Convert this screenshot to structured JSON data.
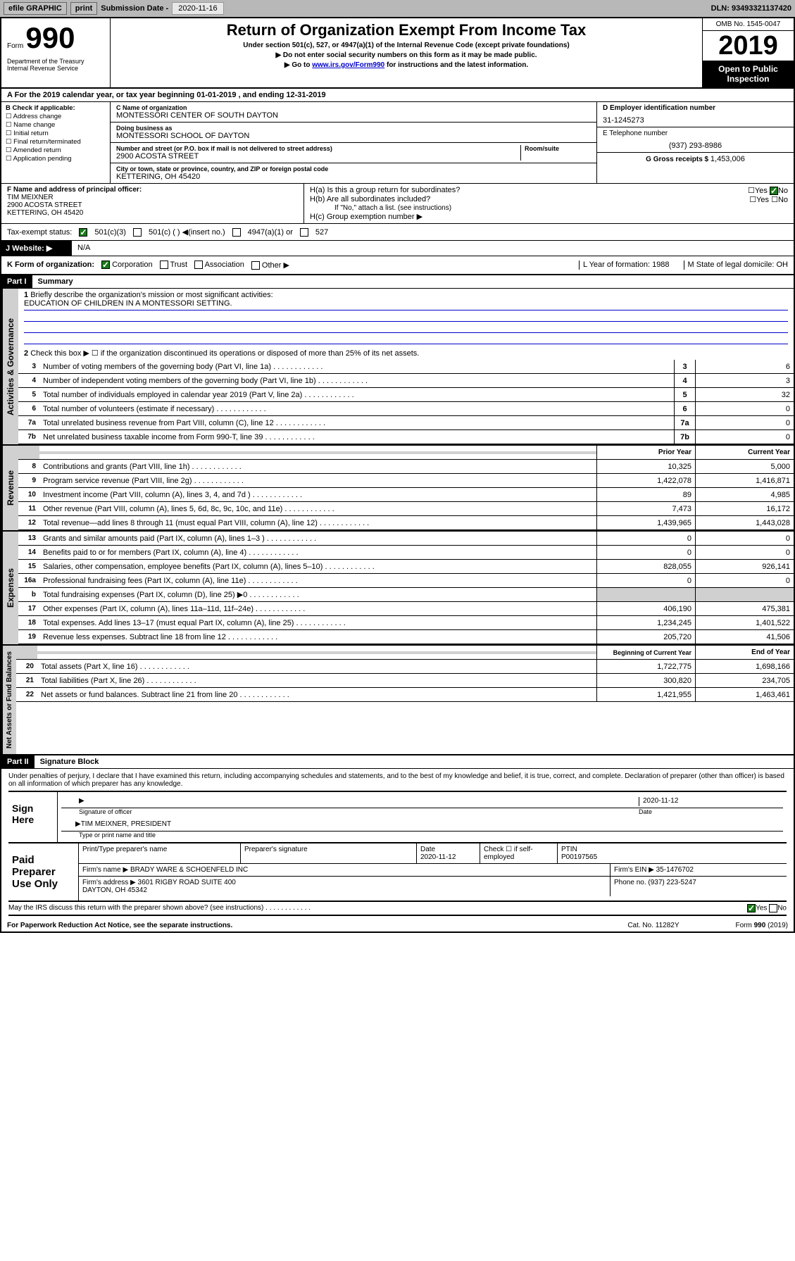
{
  "topbar": {
    "efile": "efile GRAPHIC",
    "print": "print",
    "sub_label": "Submission Date - ",
    "sub_date": "2020-11-16",
    "dln": "DLN: 93493321137420"
  },
  "header": {
    "form": "Form",
    "num": "990",
    "dept": "Department of the Treasury\nInternal Revenue Service",
    "title": "Return of Organization Exempt From Income Tax",
    "subtitle": "Under section 501(c), 527, or 4947(a)(1) of the Internal Revenue Code (except private foundations)",
    "note1": "▶ Do not enter social security numbers on this form as it may be made public.",
    "note2_a": "▶ Go to ",
    "note2_link": "www.irs.gov/Form990",
    "note2_b": " for instructions and the latest information.",
    "omb": "OMB No. 1545-0047",
    "year": "2019",
    "badge": "Open to Public\nInspection"
  },
  "period": "For the 2019 calendar year, or tax year beginning 01-01-2019    , and ending 12-31-2019",
  "b": {
    "label": "B Check if applicable:",
    "opts": [
      "Address change",
      "Name change",
      "Initial return",
      "Final return/terminated",
      "Amended return",
      "Application pending"
    ]
  },
  "c": {
    "name_label": "C Name of organization",
    "name": "MONTESSORI CENTER OF SOUTH DAYTON",
    "dba_label": "Doing business as",
    "dba": "MONTESSORI SCHOOL OF DAYTON",
    "addr_label": "Number and street (or P.O. box if mail is not delivered to street address)",
    "room_label": "Room/suite",
    "addr": "2900 ACOSTA STREET",
    "city_label": "City or town, state or province, country, and ZIP or foreign postal code",
    "city": "KETTERING, OH  45420"
  },
  "d": {
    "label": "D Employer identification number",
    "val": "31-1245273"
  },
  "e": {
    "label": "E Telephone number",
    "val": "(937) 293-8986"
  },
  "g": {
    "label": "G Gross receipts $ ",
    "val": "1,453,006"
  },
  "f": {
    "label": "F  Name and address of principal officer:",
    "name": "TIM MEIXNER",
    "addr": "2900 ACOSTA STREET\nKETTERING, OH  45420"
  },
  "h": {
    "a": "H(a)  Is this a group return for subordinates?",
    "b": "H(b)  Are all subordinates included?",
    "b_note": "If \"No,\" attach a list. (see instructions)",
    "c": "H(c)  Group exemption number ▶",
    "yes": "Yes",
    "no": "No"
  },
  "tax_status": {
    "label": "Tax-exempt status:",
    "opts": [
      "501(c)(3)",
      "501(c) (  ) ◀(insert no.)",
      "4947(a)(1) or",
      "527"
    ]
  },
  "j": {
    "label": "J    Website: ▶",
    "val": "N/A"
  },
  "k": {
    "label": "K Form of organization:",
    "opts": [
      "Corporation",
      "Trust",
      "Association",
      "Other ▶"
    ],
    "l": "L Year of formation: 1988",
    "m": "M State of legal domicile: OH"
  },
  "part1": {
    "hdr": "Part I",
    "title": "Summary",
    "vert1": "Activities & Governance",
    "vert2": "Revenue",
    "vert3": "Expenses",
    "vert4": "Net Assets or Fund Balances",
    "l1": "Briefly describe the organization's mission or most significant activities:",
    "mission": "EDUCATION OF CHILDREN IN A MONTESSORI SETTING.",
    "l2": "Check this box ▶ ☐  if the organization discontinued its operations or disposed of more than 25% of its net assets.",
    "lines_gov": [
      {
        "n": "3",
        "t": "Number of voting members of the governing body (Part VI, line 1a)",
        "box": "3",
        "v": "6"
      },
      {
        "n": "4",
        "t": "Number of independent voting members of the governing body (Part VI, line 1b)",
        "box": "4",
        "v": "3"
      },
      {
        "n": "5",
        "t": "Total number of individuals employed in calendar year 2019 (Part V, line 2a)",
        "box": "5",
        "v": "32"
      },
      {
        "n": "6",
        "t": "Total number of volunteers (estimate if necessary)",
        "box": "6",
        "v": "0"
      },
      {
        "n": "7a",
        "t": "Total unrelated business revenue from Part VIII, column (C), line 12",
        "box": "7a",
        "v": "0"
      },
      {
        "n": "7b",
        "t": "Net unrelated business taxable income from Form 990-T, line 39",
        "box": "7b",
        "v": "0"
      }
    ],
    "prior_hdr": "Prior Year",
    "curr_hdr": "Current Year",
    "lines_rev": [
      {
        "n": "8",
        "t": "Contributions and grants (Part VIII, line 1h)",
        "p": "10,325",
        "c": "5,000"
      },
      {
        "n": "9",
        "t": "Program service revenue (Part VIII, line 2g)",
        "p": "1,422,078",
        "c": "1,416,871"
      },
      {
        "n": "10",
        "t": "Investment income (Part VIII, column (A), lines 3, 4, and 7d )",
        "p": "89",
        "c": "4,985"
      },
      {
        "n": "11",
        "t": "Other revenue (Part VIII, column (A), lines 5, 6d, 8c, 9c, 10c, and 11e)",
        "p": "7,473",
        "c": "16,172"
      },
      {
        "n": "12",
        "t": "Total revenue—add lines 8 through 11 (must equal Part VIII, column (A), line 12)",
        "p": "1,439,965",
        "c": "1,443,028"
      }
    ],
    "lines_exp": [
      {
        "n": "13",
        "t": "Grants and similar amounts paid (Part IX, column (A), lines 1–3 )",
        "p": "0",
        "c": "0"
      },
      {
        "n": "14",
        "t": "Benefits paid to or for members (Part IX, column (A), line 4)",
        "p": "0",
        "c": "0"
      },
      {
        "n": "15",
        "t": "Salaries, other compensation, employee benefits (Part IX, column (A), lines 5–10)",
        "p": "828,055",
        "c": "926,141"
      },
      {
        "n": "16a",
        "t": "Professional fundraising fees (Part IX, column (A), line 11e)",
        "p": "0",
        "c": "0"
      },
      {
        "n": "b",
        "t": "Total fundraising expenses (Part IX, column (D), line 25) ▶0",
        "p": "",
        "c": "",
        "gray": true
      },
      {
        "n": "17",
        "t": "Other expenses (Part IX, column (A), lines 11a–11d, 11f–24e)",
        "p": "406,190",
        "c": "475,381"
      },
      {
        "n": "18",
        "t": "Total expenses. Add lines 13–17 (must equal Part IX, column (A), line 25)",
        "p": "1,234,245",
        "c": "1,401,522"
      },
      {
        "n": "19",
        "t": "Revenue less expenses. Subtract line 18 from line 12",
        "p": "205,720",
        "c": "41,506"
      }
    ],
    "beg_hdr": "Beginning of Current Year",
    "end_hdr": "End of Year",
    "lines_net": [
      {
        "n": "20",
        "t": "Total assets (Part X, line 16)",
        "p": "1,722,775",
        "c": "1,698,166"
      },
      {
        "n": "21",
        "t": "Total liabilities (Part X, line 26)",
        "p": "300,820",
        "c": "234,705"
      },
      {
        "n": "22",
        "t": "Net assets or fund balances. Subtract line 21 from line 20",
        "p": "1,421,955",
        "c": "1,463,461"
      }
    ]
  },
  "part2": {
    "hdr": "Part II",
    "title": "Signature Block",
    "decl": "Under penalties of perjury, I declare that I have examined this return, including accompanying schedules and statements, and to the best of my knowledge and belief, it is true, correct, and complete. Declaration of preparer (other than officer) is based on all information of which preparer has any knowledge.",
    "sign_here": "Sign Here",
    "sig_date": "2020-11-12",
    "sig_officer": "Signature of officer",
    "date_label": "Date",
    "officer_name": "TIM MEIXNER, PRESIDENT",
    "type_name": "Type or print name and title",
    "paid": "Paid Preparer Use Only",
    "prep_name_label": "Print/Type preparer's name",
    "prep_sig_label": "Preparer's signature",
    "prep_date": "2020-11-12",
    "self_emp": "Check ☐ if self-employed",
    "ptin_label": "PTIN",
    "ptin": "P00197565",
    "firm_name_label": "Firm's name    ▶",
    "firm_name": "BRADY WARE & SCHOENFELD INC",
    "firm_ein_label": "Firm's EIN ▶",
    "firm_ein": "35-1476702",
    "firm_addr_label": "Firm's address ▶",
    "firm_addr": "3601 RIGBY ROAD SUITE 400\nDAYTON, OH  45342",
    "phone_label": "Phone no.",
    "phone": "(937) 223-5247",
    "discuss": "May the IRS discuss this return with the preparer shown above? (see instructions)",
    "yes": "Yes",
    "no": "No"
  },
  "footer": {
    "left": "For Paperwork Reduction Act Notice, see the separate instructions.",
    "mid": "Cat. No. 11282Y",
    "right": "Form 990 (2019)"
  }
}
